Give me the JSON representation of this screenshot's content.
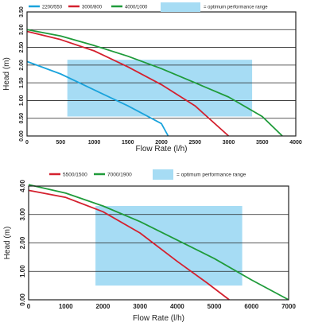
{
  "chart_data": [
    {
      "type": "line",
      "title": "",
      "xlabel": "Flow Rate (l/h)",
      "ylabel": "Head (m)",
      "xlim": [
        0,
        4000
      ],
      "ylim": [
        0,
        3.5
      ],
      "x_ticks": [
        0,
        500,
        1000,
        1500,
        2000,
        2500,
        3000,
        3500,
        4000
      ],
      "x_tick_labels": [
        "0",
        "500",
        "1000",
        "1500",
        "2000",
        "2500",
        "3000",
        "3500",
        "4000"
      ],
      "y_ticks": [
        0,
        0.5,
        1.0,
        1.5,
        2.0,
        2.5,
        3.0,
        3.5
      ],
      "y_tick_labels": [
        "0.00",
        "0.50",
        "1.00",
        "1.50",
        "2.00",
        "2.50",
        "3.00",
        "3.50"
      ],
      "grid": "horizontal",
      "legend_position": "top",
      "optimum_range": {
        "label": "= optimum performance range",
        "color": "#a6dcf4",
        "x": [
          600,
          3350
        ],
        "y": [
          0.55,
          2.15
        ]
      },
      "series": [
        {
          "name": "2200/550",
          "color": "#1aa3dc",
          "x": [
            0,
            500,
            1000,
            1500,
            2000,
            2100
          ],
          "y": [
            2.1,
            1.75,
            1.3,
            0.85,
            0.35,
            0.0
          ]
        },
        {
          "name": "3000/800",
          "color": "#d4202e",
          "x": [
            0,
            500,
            1000,
            1500,
            2000,
            2500,
            3000
          ],
          "y": [
            2.95,
            2.72,
            2.4,
            1.95,
            1.45,
            0.85,
            0.0
          ]
        },
        {
          "name": "4000/1000",
          "color": "#1f9b3a",
          "x": [
            0,
            500,
            1000,
            1500,
            2000,
            2500,
            3000,
            3500,
            3800
          ],
          "y": [
            3.0,
            2.82,
            2.55,
            2.25,
            1.9,
            1.5,
            1.1,
            0.55,
            0.0
          ]
        }
      ]
    },
    {
      "type": "line",
      "title": "",
      "xlabel": "Flow Rate (l/h)",
      "ylabel": "Head (m)",
      "xlim": [
        0,
        7000
      ],
      "ylim": [
        0,
        4.0
      ],
      "x_ticks": [
        0,
        1000,
        2000,
        3000,
        4000,
        5000,
        6000,
        7000
      ],
      "x_tick_labels": [
        "0",
        "1000",
        "2000",
        "3000",
        "4000",
        "5000",
        "6000",
        "7000"
      ],
      "y_ticks": [
        0,
        1.0,
        2.0,
        3.0,
        4.0
      ],
      "y_tick_labels": [
        "0.00",
        "1.00",
        "2.00",
        "3.00",
        "4.00"
      ],
      "grid": "horizontal",
      "legend_position": "top",
      "optimum_range": {
        "label": "= optimum performance range",
        "color": "#a6dcf4",
        "x": [
          1800,
          5750
        ],
        "y": [
          0.5,
          3.3
        ]
      },
      "series": [
        {
          "name": "5500/1500",
          "color": "#d4202e",
          "x": [
            0,
            1000,
            2000,
            3000,
            4000,
            4800,
            5400
          ],
          "y": [
            3.85,
            3.6,
            3.1,
            2.35,
            1.35,
            0.6,
            0.0
          ]
        },
        {
          "name": "7000/1900",
          "color": "#1f9b3a",
          "x": [
            0,
            1000,
            2000,
            3000,
            4000,
            5000,
            6000,
            7000
          ],
          "y": [
            4.05,
            3.75,
            3.3,
            2.75,
            2.1,
            1.45,
            0.7,
            0.0
          ]
        }
      ]
    }
  ]
}
